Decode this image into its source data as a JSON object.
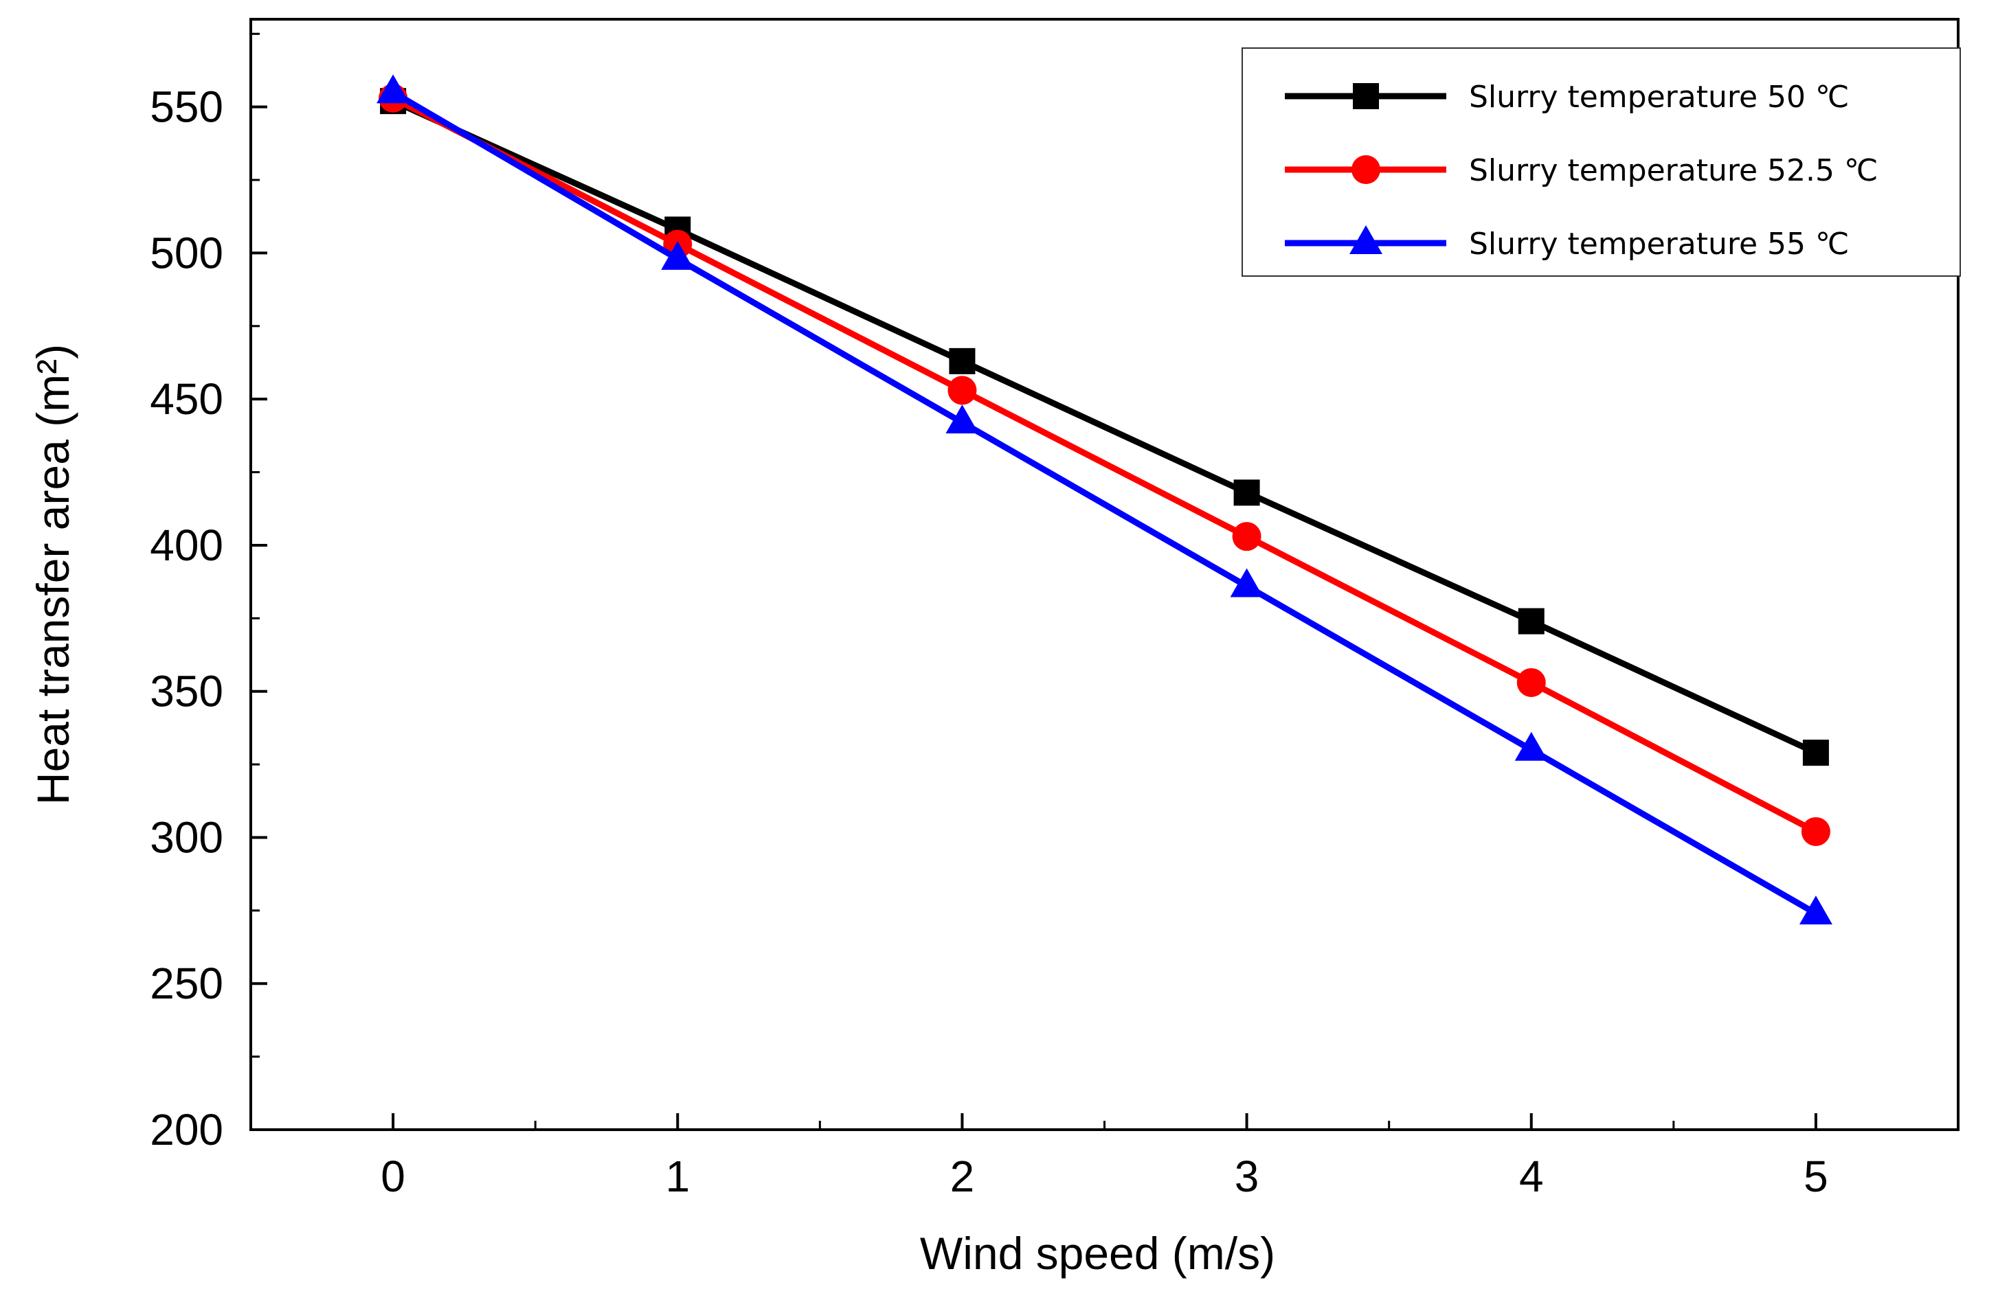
{
  "chart_data": {
    "type": "line",
    "title": "",
    "xlabel": "Wind speed (m/s)",
    "ylabel": "Heat transfer area (m²)",
    "xlim": [
      -0.5,
      5.5
    ],
    "ylim": [
      200,
      580
    ],
    "x": [
      0,
      1,
      2,
      3,
      4,
      5
    ],
    "x_ticks": [
      "0",
      "1",
      "2",
      "3",
      "4",
      "5"
    ],
    "y_ticks": [
      "200",
      "250",
      "300",
      "350",
      "400",
      "450",
      "500",
      "550"
    ],
    "grid": false,
    "legend_position": "top-right",
    "series": [
      {
        "name": "Slurry temperature  50  ℃",
        "color": "#000000",
        "marker": "square",
        "values": [
          552,
          508,
          463,
          418,
          374,
          329
        ]
      },
      {
        "name": "Slurry temperature  52.5  ℃",
        "color": "#ff0000",
        "marker": "circle",
        "values": [
          553,
          503,
          453,
          403,
          353,
          302
        ]
      },
      {
        "name": "Slurry temperature  55  ℃",
        "color": "#0000ff",
        "marker": "triangle",
        "values": [
          555,
          498,
          442,
          386,
          330,
          274
        ]
      }
    ]
  }
}
